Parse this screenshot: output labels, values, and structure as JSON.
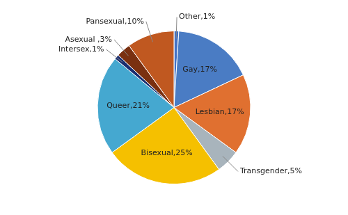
{
  "chart_data": {
    "type": "pie",
    "categories": [
      "Other",
      "Gay",
      "Lesbian",
      "Transgender",
      "Bisexual",
      "Queer",
      "Intersex",
      "Asexual",
      "Pansexual"
    ],
    "values": [
      1,
      17,
      17,
      5,
      25,
      21,
      1,
      3,
      10
    ],
    "value_labels": [
      "Other,1%",
      "Gay,17%",
      "Lesbian,17%",
      "Transgender,5%",
      "Bisexual,25%",
      "Queer,21%",
      "Intersex,1%",
      "Asexual ,3%",
      "Pansexual,10%"
    ],
    "colors": [
      "#4472c4",
      "#4a7cc4",
      "#e07030",
      "#a8b4bc",
      "#f5c000",
      "#45a8d0",
      "#1a2e70",
      "#7a3010",
      "#c05820"
    ],
    "data_labels": true
  }
}
